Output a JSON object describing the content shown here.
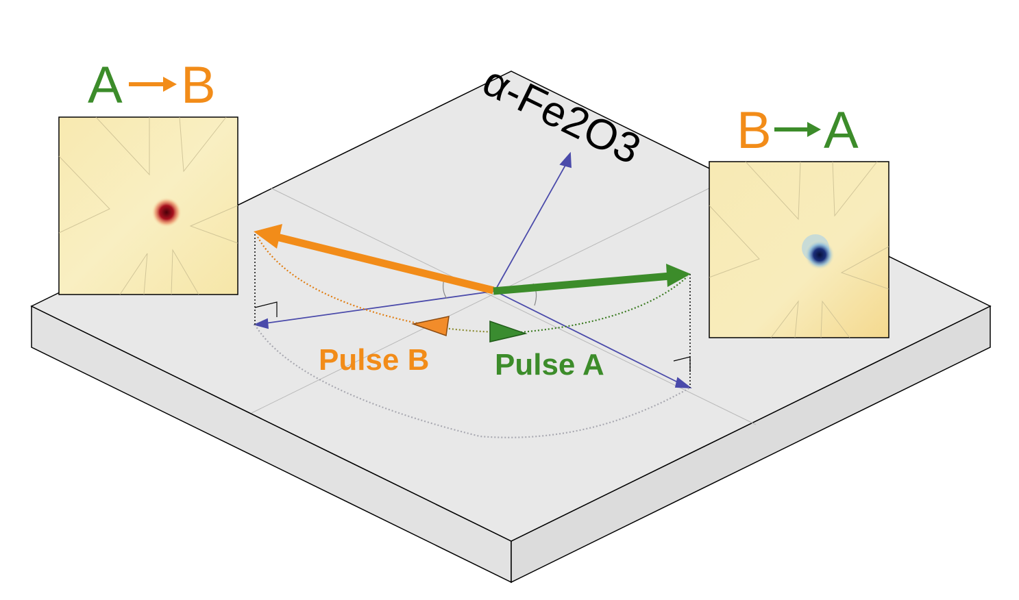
{
  "material": "α-Fe2O3",
  "pulse_b": "Pulse B",
  "pulse_a": "Pulse A",
  "inset_left": {
    "from": "A",
    "to": "B"
  },
  "inset_right": {
    "from": "B",
    "to": "A"
  },
  "colors": {
    "state_a_green": "#3c8c2a",
    "state_b_orange": "#f28c19",
    "axis_blue": "#4a4aaa",
    "slab_top": "#e8e8e8",
    "slab_side": "#e2e2e2",
    "inset_bg": "#f7ecb8",
    "left_spot": "#8c0a1e",
    "right_spot": "#0a1a55"
  }
}
